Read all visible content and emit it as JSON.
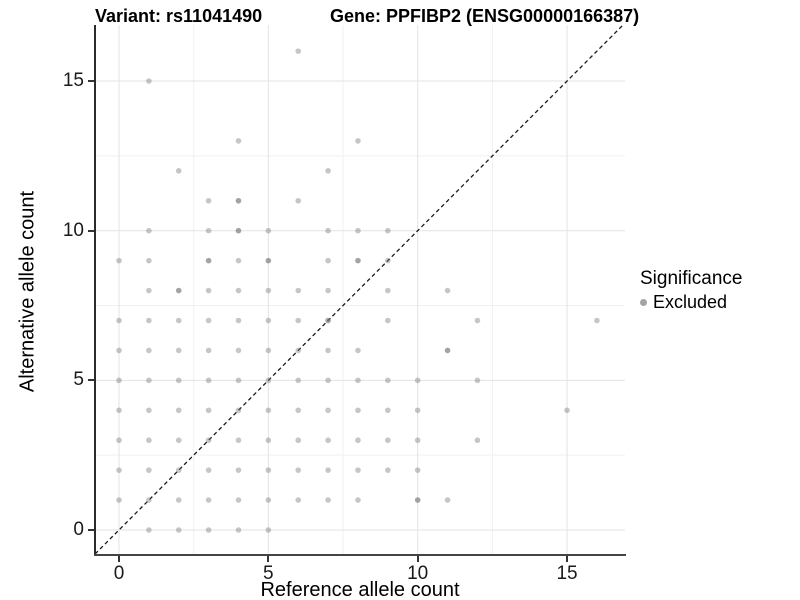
{
  "header": {
    "title_left": "Variant: rs11041490",
    "title_right": "Gene: PPFIBP2 (ENSG00000166387)"
  },
  "legend": {
    "title": "Significance",
    "items": [
      {
        "label": "Excluded",
        "color": "#a3a3a3",
        "marker": "dot"
      }
    ]
  },
  "colors": {
    "point": "#777777",
    "major_grid": "#e3e3e3",
    "minor_grid": "#f1f1f1",
    "diagonal_line": "#1a1a1a",
    "axis": "#333333"
  },
  "chart_data": {
    "type": "scatter",
    "title": "Variant: rs11041490  /  Gene: PPFIBP2 (ENSG00000166387)",
    "xlabel": "Reference allele count",
    "ylabel": "Alternative allele count",
    "xlim": [
      -0.8,
      16.9
    ],
    "ylim": [
      -0.8,
      16.9
    ],
    "x_ticks": [
      0,
      5,
      10,
      15
    ],
    "y_ticks": [
      0,
      5,
      10,
      15
    ],
    "minor_gridlines": [
      2.5,
      7.5,
      12.5
    ],
    "grid": "on",
    "legend_position": "right",
    "reference_line": "y = x (dashed)",
    "series": [
      {
        "name": "Excluded",
        "points": [
          [
            1,
            0
          ],
          [
            2,
            0
          ],
          [
            3,
            0
          ],
          [
            4,
            0
          ],
          [
            5,
            0
          ],
          [
            0,
            1
          ],
          [
            1,
            1
          ],
          [
            2,
            1
          ],
          [
            3,
            1
          ],
          [
            4,
            1
          ],
          [
            5,
            1
          ],
          [
            6,
            1
          ],
          [
            7,
            1
          ],
          [
            8,
            1
          ],
          [
            10,
            1
          ],
          [
            11,
            1
          ],
          [
            0,
            2
          ],
          [
            1,
            2
          ],
          [
            2,
            2
          ],
          [
            3,
            2
          ],
          [
            4,
            2
          ],
          [
            5,
            2
          ],
          [
            6,
            2
          ],
          [
            7,
            2
          ],
          [
            8,
            2
          ],
          [
            9,
            2
          ],
          [
            10,
            2
          ],
          [
            0,
            3
          ],
          [
            1,
            3
          ],
          [
            2,
            3
          ],
          [
            3,
            3
          ],
          [
            4,
            3
          ],
          [
            5,
            3
          ],
          [
            6,
            3
          ],
          [
            7,
            3
          ],
          [
            8,
            3
          ],
          [
            9,
            3
          ],
          [
            10,
            3
          ],
          [
            12,
            3
          ],
          [
            0,
            4
          ],
          [
            1,
            4
          ],
          [
            2,
            4
          ],
          [
            3,
            4
          ],
          [
            4,
            4
          ],
          [
            5,
            4
          ],
          [
            6,
            4
          ],
          [
            7,
            4
          ],
          [
            8,
            4
          ],
          [
            9,
            4
          ],
          [
            10,
            4
          ],
          [
            15,
            4
          ],
          [
            0,
            5
          ],
          [
            1,
            5
          ],
          [
            2,
            5
          ],
          [
            3,
            5
          ],
          [
            4,
            5
          ],
          [
            5,
            5
          ],
          [
            6,
            5
          ],
          [
            7,
            5
          ],
          [
            8,
            5
          ],
          [
            9,
            5
          ],
          [
            10,
            5
          ],
          [
            12,
            5
          ],
          [
            0,
            6
          ],
          [
            1,
            6
          ],
          [
            2,
            6
          ],
          [
            3,
            6
          ],
          [
            4,
            6
          ],
          [
            5,
            6
          ],
          [
            6,
            6
          ],
          [
            7,
            6
          ],
          [
            8,
            6
          ],
          [
            11,
            6
          ],
          [
            0,
            7
          ],
          [
            1,
            7
          ],
          [
            2,
            7
          ],
          [
            3,
            7
          ],
          [
            4,
            7
          ],
          [
            5,
            7
          ],
          [
            6,
            7
          ],
          [
            7,
            7
          ],
          [
            9,
            7
          ],
          [
            12,
            7
          ],
          [
            16,
            7
          ],
          [
            1,
            8
          ],
          [
            2,
            8
          ],
          [
            3,
            8
          ],
          [
            4,
            8
          ],
          [
            5,
            8
          ],
          [
            6,
            8
          ],
          [
            7,
            8
          ],
          [
            9,
            8
          ],
          [
            11,
            8
          ],
          [
            0,
            9
          ],
          [
            1,
            9
          ],
          [
            3,
            9
          ],
          [
            4,
            9
          ],
          [
            5,
            9
          ],
          [
            7,
            9
          ],
          [
            8,
            9
          ],
          [
            9,
            9
          ],
          [
            1,
            10
          ],
          [
            3,
            10
          ],
          [
            4,
            10
          ],
          [
            5,
            10
          ],
          [
            7,
            10
          ],
          [
            8,
            10
          ],
          [
            9,
            10
          ],
          [
            3,
            11
          ],
          [
            4,
            11
          ],
          [
            6,
            11
          ],
          [
            2,
            12
          ],
          [
            7,
            12
          ],
          [
            4,
            13
          ],
          [
            8,
            13
          ],
          [
            1,
            15
          ],
          [
            6,
            16
          ]
        ],
        "emphasized_points": [
          [
            2,
            8
          ],
          [
            3,
            9
          ],
          [
            5,
            9
          ],
          [
            8,
            9
          ],
          [
            4,
            10
          ],
          [
            7,
            7
          ],
          [
            11,
            6
          ],
          [
            10,
            1
          ],
          [
            4,
            11
          ]
        ]
      }
    ]
  }
}
